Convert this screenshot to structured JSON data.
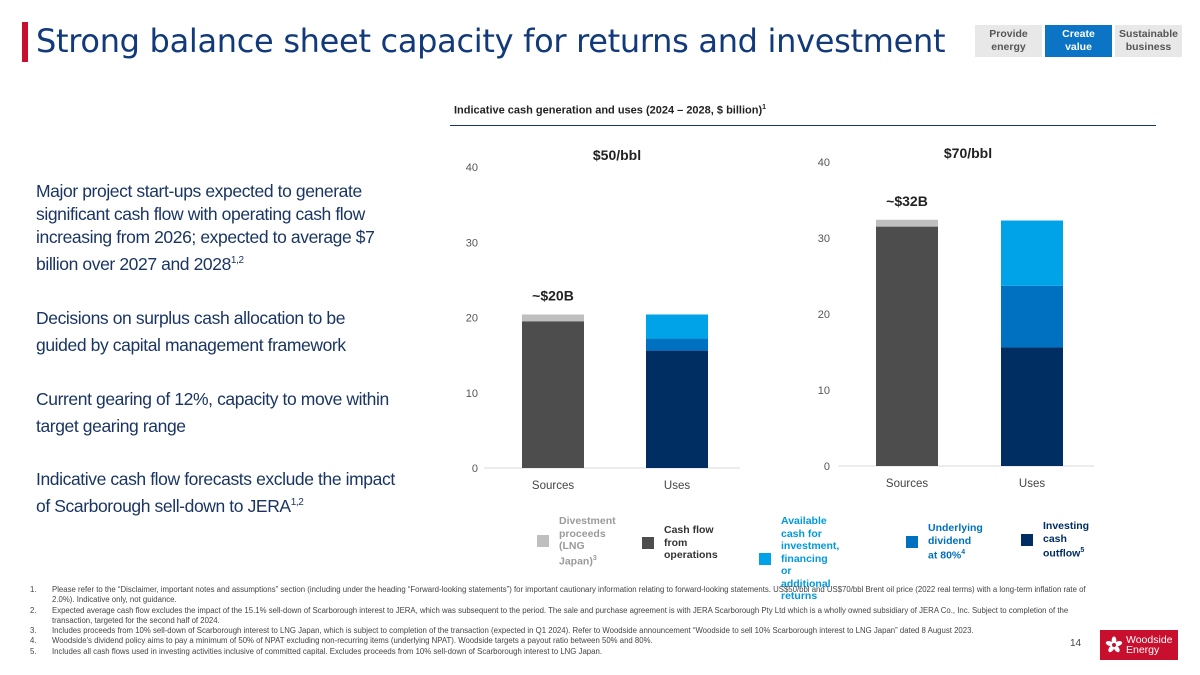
{
  "header": {
    "title": "Strong balance sheet capacity for returns and investment",
    "nav": [
      {
        "label": "Provide\nenergy",
        "active": false
      },
      {
        "label": "Create\nvalue",
        "active": true
      },
      {
        "label": "Sustainable\nbusiness",
        "active": false
      }
    ]
  },
  "bullets": [
    {
      "text": "Major project start-ups expected to generate significant cash flow with operating cash flow increasing from 2026; expected to average $7 billion over 2027 and 2028",
      "sup": "1,2"
    },
    {
      "text": "Decisions on surplus cash allocation to be guided by capital management framework",
      "sup": ""
    },
    {
      "text": "Current gearing of 12%, capacity to move within target gearing range",
      "sup": ""
    },
    {
      "text": "Indicative cash flow forecasts exclude the impact of Scarborough sell-down to JERA",
      "sup": "1,2"
    }
  ],
  "chart_title": {
    "text": "Indicative cash generation and uses (2024 – 2028, $ billion)",
    "sup": "1"
  },
  "colors": {
    "divestment": "#bfbfbf",
    "cash_from_operations": "#4d4d4d",
    "available_cash": "#00a3e8",
    "underlying_dividend": "#0070c0",
    "investing_outflow": "#002d62"
  },
  "chart_data": [
    {
      "type": "bar",
      "stacked": true,
      "title": "$50/bbl",
      "total_label": "~$20B",
      "categories": [
        "Sources",
        "Uses"
      ],
      "ylim": [
        0,
        40
      ],
      "yticks": [
        0,
        10,
        20,
        30,
        40
      ],
      "series": [
        {
          "name": "Cash flow from operations",
          "key": "cash_from_operations",
          "values": [
            19.5,
            0
          ]
        },
        {
          "name": "Divestment proceeds (LNG Japan)",
          "key": "divestment",
          "values": [
            0.9,
            0
          ]
        },
        {
          "name": "Investing cash outflow",
          "key": "investing_outflow",
          "values": [
            0,
            15.6
          ]
        },
        {
          "name": "Underlying dividend at 80%",
          "key": "underlying_dividend",
          "values": [
            0,
            1.6
          ]
        },
        {
          "name": "Available cash for investment, financing or additional returns",
          "key": "available_cash",
          "values": [
            0,
            3.2
          ]
        }
      ]
    },
    {
      "type": "bar",
      "stacked": true,
      "title": "$70/bbl",
      "total_label": "~$32B",
      "categories": [
        "Sources",
        "Uses"
      ],
      "ylim": [
        0,
        40
      ],
      "yticks": [
        0,
        10,
        20,
        30,
        40
      ],
      "series": [
        {
          "name": "Cash flow from operations",
          "key": "cash_from_operations",
          "values": [
            31.5,
            0
          ]
        },
        {
          "name": "Divestment proceeds (LNG Japan)",
          "key": "divestment",
          "values": [
            0.9,
            0
          ]
        },
        {
          "name": "Investing cash outflow",
          "key": "investing_outflow",
          "values": [
            0,
            15.6
          ]
        },
        {
          "name": "Underlying dividend at 80%",
          "key": "underlying_dividend",
          "values": [
            0,
            8.1
          ]
        },
        {
          "name": "Available cash for investment, financing or additional returns",
          "key": "available_cash",
          "values": [
            0,
            8.6
          ]
        }
      ]
    }
  ],
  "legend": [
    {
      "key": "divestment",
      "label": "Divestment\nproceeds\n(LNG Japan)",
      "sup": "3",
      "text_color": "#9a9a9a"
    },
    {
      "key": "cash_from_operations",
      "label": "Cash flow from\noperations",
      "sup": "",
      "text_color": "#333333"
    },
    {
      "key": "available_cash",
      "label": "Available cash for\ninvestment, financing\nor additional returns",
      "sup": "",
      "text_color": "#0099dd"
    },
    {
      "key": "underlying_dividend",
      "label": "Underlying\ndividend at 80%",
      "sup": "4",
      "text_color": "#0070c0"
    },
    {
      "key": "investing_outflow",
      "label": "Investing cash\noutflow",
      "sup": "5",
      "text_color": "#002d62"
    }
  ],
  "footnotes": [
    {
      "num": "1.",
      "text": "Please refer to the “Disclaimer, important notes and assumptions” section (including under the heading “Forward-looking statements”) for important cautionary information relating to forward-looking statements. US$50/bbl and US$70/bbl Brent oil price (2022 real terms) with a long-term inflation rate of 2.0%). Indicative only, not guidance."
    },
    {
      "num": "2.",
      "text": "Expected average cash flow excludes the impact of the 15.1% sell-down of Scarborough interest to JERA, which was subsequent to the period. The sale and purchase agreement is with JERA Scarborough Pty Ltd which is a wholly owned subsidiary of JERA Co., Inc. Subject to completion of the transaction, targeted for the second half of 2024."
    },
    {
      "num": "3.",
      "text": "Includes proceeds from 10% sell-down of Scarborough interest to LNG Japan, which is subject to completion of the transaction (expected in Q1 2024). Refer to Woodside announcement “Woodside to sell 10% Scarborough interest to LNG Japan” dated 8 August 2023."
    },
    {
      "num": "4.",
      "text": "Woodside's dividend policy aims to pay a minimum of 50% of NPAT excluding non-recurring items (underlying NPAT). Woodside targets a payout ratio between 50% and 80%."
    },
    {
      "num": "5.",
      "text": "Includes all cash flows used in investing activities inclusive of committed capital. Excludes proceeds from 10% sell-down of Scarborough interest to LNG Japan."
    }
  ],
  "page_number": "14",
  "logo": {
    "text": "Woodside\nEnergy",
    "icon": "woodside-flower-icon"
  }
}
